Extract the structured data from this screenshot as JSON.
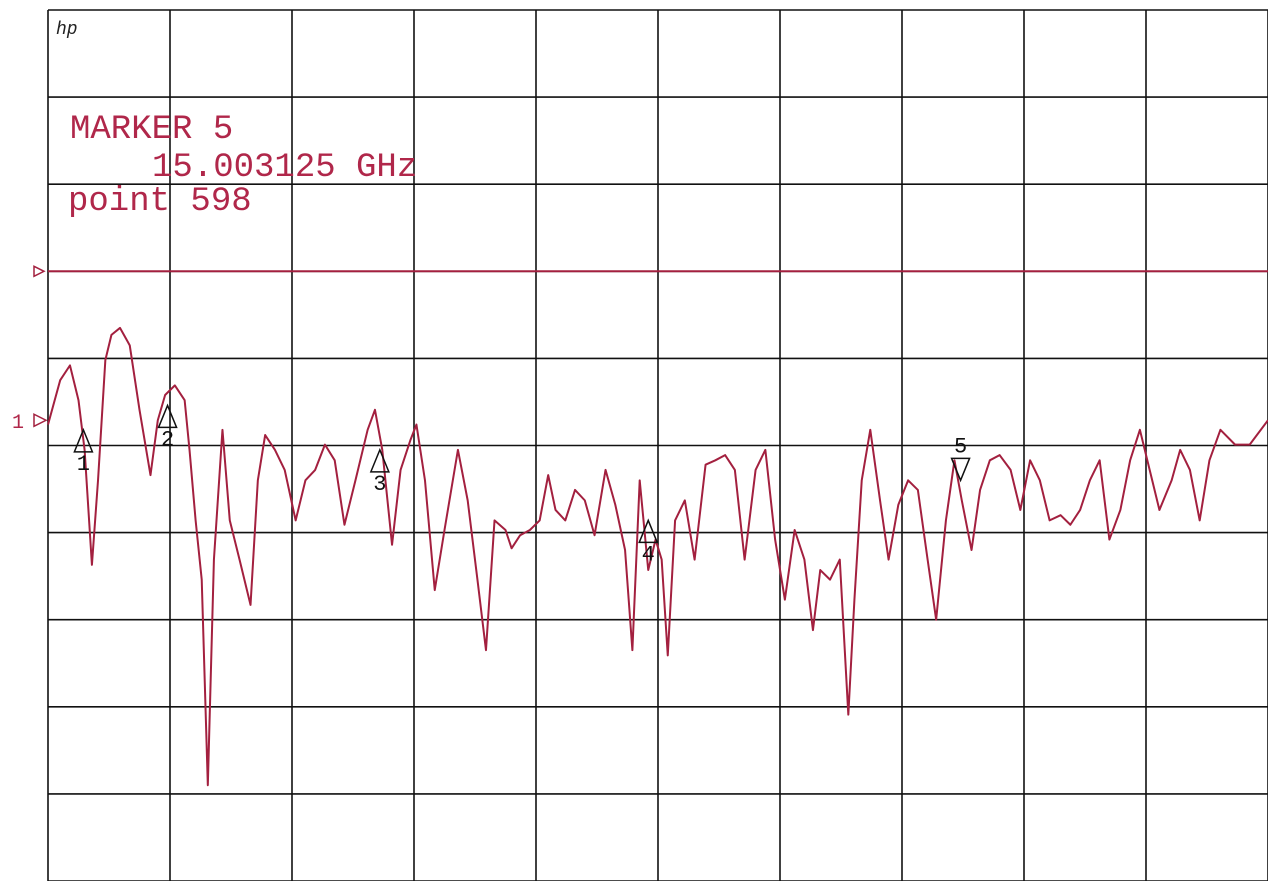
{
  "chart_data": {
    "type": "line",
    "logo": "hp",
    "annotations": [
      "MARKER 5",
      "15.003125 GHz",
      "point 598"
    ],
    "channel": "1",
    "reference_level": 7,
    "reference_position": 5.29,
    "xlim": [
      0,
      10
    ],
    "ylim": [
      0,
      10
    ],
    "xticks": [
      0,
      1,
      2,
      3,
      4,
      5,
      6,
      7,
      8,
      9,
      10
    ],
    "yticks": [
      0,
      1,
      2,
      3,
      4,
      5,
      6,
      7,
      8,
      9,
      10
    ],
    "grid": true,
    "x": [
      0,
      0.1,
      0.18,
      0.25,
      0.3,
      0.36,
      0.41,
      0.47,
      0.52,
      0.59,
      0.67,
      0.75,
      0.84,
      0.9,
      0.96,
      1.04,
      1.12,
      1.16,
      1.21,
      1.26,
      1.31,
      1.36,
      1.43,
      1.49,
      1.57,
      1.66,
      1.72,
      1.78,
      1.86,
      1.94,
      2.03,
      2.11,
      2.19,
      2.27,
      2.35,
      2.43,
      2.52,
      2.62,
      2.68,
      2.74,
      2.82,
      2.89,
      2.97,
      3.02,
      3.09,
      3.17,
      3.25,
      3.36,
      3.44,
      3.52,
      3.59,
      3.66,
      3.75,
      3.8,
      3.87,
      3.95,
      4.03,
      4.1,
      4.16,
      4.24,
      4.32,
      4.4,
      4.48,
      4.57,
      4.65,
      4.73,
      4.79,
      4.85,
      4.92,
      4.98,
      5.03,
      5.08,
      5.14,
      5.22,
      5.3,
      5.39,
      5.47,
      5.55,
      5.63,
      5.71,
      5.8,
      5.88,
      5.96,
      6.04,
      6.12,
      6.2,
      6.27,
      6.33,
      6.41,
      6.49,
      6.56,
      6.61,
      6.67,
      6.74,
      6.82,
      6.89,
      6.97,
      7.05,
      7.13,
      7.21,
      7.28,
      7.36,
      7.43,
      7.49,
      7.57,
      7.64,
      7.72,
      7.8,
      7.89,
      7.97,
      8.05,
      8.13,
      8.21,
      8.3,
      8.38,
      8.46,
      8.54,
      8.62,
      8.7,
      8.79,
      8.87,
      8.95,
      9.03,
      9.11,
      9.21,
      9.28,
      9.36,
      9.44,
      9.52,
      9.61,
      9.73,
      9.85,
      10
    ],
    "series": [
      {
        "color": "#a3203f",
        "values": [
          5.24,
          5.75,
          5.92,
          5.52,
          4.95,
          3.63,
          4.6,
          5.98,
          6.27,
          6.35,
          6.15,
          5.41,
          4.66,
          5.29,
          5.58,
          5.69,
          5.52,
          4.95,
          4.14,
          3.46,
          1.1,
          3.69,
          5.18,
          4.14,
          3.69,
          3.17,
          4.6,
          5.12,
          4.95,
          4.72,
          4.14,
          4.6,
          4.72,
          5.01,
          4.83,
          4.09,
          4.6,
          5.18,
          5.41,
          4.95,
          3.86,
          4.72,
          5.06,
          5.24,
          4.6,
          3.34,
          4.03,
          4.95,
          4.37,
          3.46,
          2.65,
          4.14,
          4.03,
          3.82,
          3.97,
          4.03,
          4.14,
          4.66,
          4.26,
          4.14,
          4.49,
          4.37,
          3.97,
          4.72,
          4.32,
          3.8,
          2.65,
          4.6,
          3.57,
          3.92,
          3.69,
          2.59,
          4.14,
          4.37,
          3.69,
          4.78,
          4.83,
          4.89,
          4.72,
          3.69,
          4.72,
          4.95,
          3.92,
          3.23,
          4.03,
          3.69,
          2.88,
          3.57,
          3.46,
          3.69,
          1.91,
          3.23,
          4.6,
          5.18,
          4.37,
          3.69,
          4.32,
          4.6,
          4.49,
          3.69,
          3.0,
          4.14,
          4.83,
          4.37,
          3.8,
          4.49,
          4.83,
          4.89,
          4.72,
          4.26,
          4.83,
          4.6,
          4.14,
          4.2,
          4.09,
          4.26,
          4.6,
          4.83,
          3.92,
          4.26,
          4.83,
          5.18,
          4.72,
          4.26,
          4.6,
          4.95,
          4.72,
          4.14,
          4.83,
          5.18,
          5.01,
          5.01,
          5.29
        ]
      }
    ],
    "markers": [
      {
        "label": "1",
        "x": 0.29,
        "y": 5.18,
        "direction": "up"
      },
      {
        "label": "2",
        "x": 0.98,
        "y": 5.46,
        "direction": "up"
      },
      {
        "label": "3",
        "x": 2.72,
        "y": 4.95,
        "direction": "up"
      },
      {
        "label": "4",
        "x": 4.92,
        "y": 4.14,
        "direction": "up"
      },
      {
        "label": "5",
        "x": 7.48,
        "y": 4.6,
        "direction": "down"
      }
    ]
  }
}
